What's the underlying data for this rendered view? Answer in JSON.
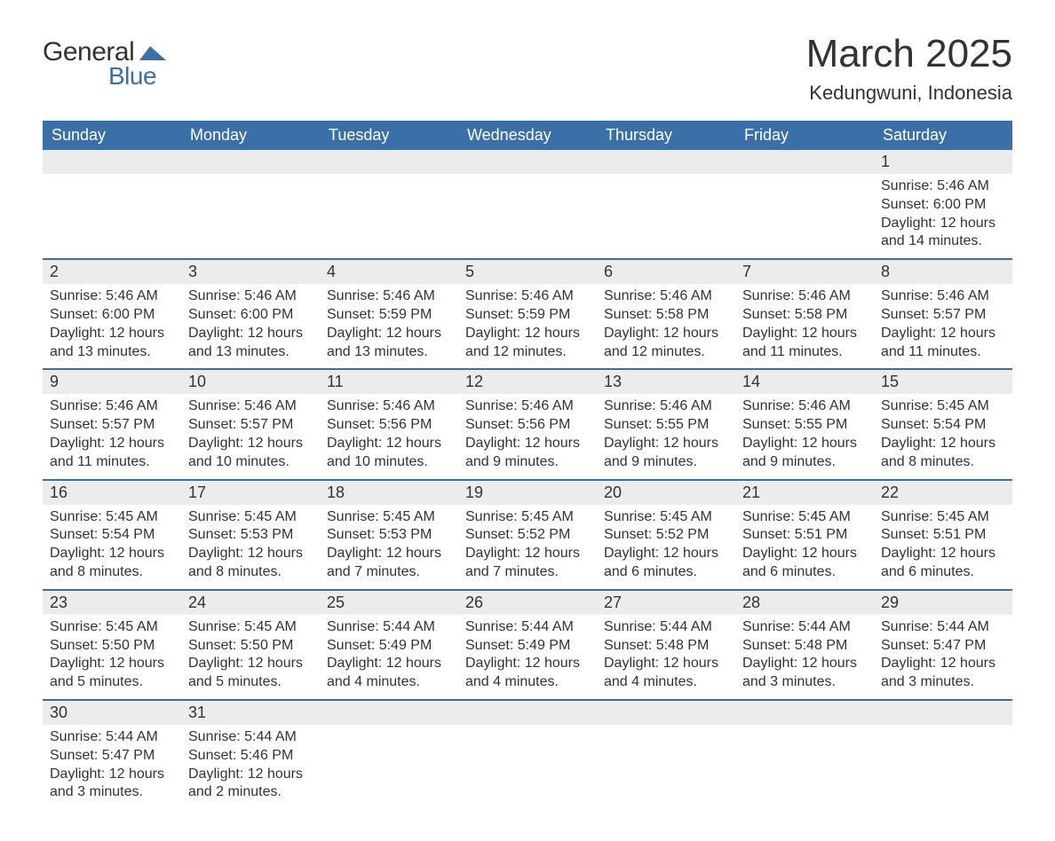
{
  "logo": {
    "text1": "General",
    "text2": "Blue",
    "mark_color": "#3b6fa8"
  },
  "title": "March 2025",
  "location": "Kedungwuni, Indonesia",
  "colors": {
    "header_bg": "#3b6fa8",
    "header_text": "#ffffff",
    "daynum_bg": "#ececec",
    "row_divider": "#3b6fa8",
    "body_text": "#333333",
    "page_bg": "#ffffff"
  },
  "typography": {
    "title_fontsize": 44,
    "location_fontsize": 22,
    "dow_fontsize": 18,
    "daynum_fontsize": 18,
    "detail_fontsize": 16
  },
  "days_of_week": [
    "Sunday",
    "Monday",
    "Tuesday",
    "Wednesday",
    "Thursday",
    "Friday",
    "Saturday"
  ],
  "weeks": [
    [
      null,
      null,
      null,
      null,
      null,
      null,
      {
        "n": "1",
        "sr": "Sunrise: 5:46 AM",
        "ss": "Sunset: 6:00 PM",
        "d1": "Daylight: 12 hours",
        "d2": "and 14 minutes."
      }
    ],
    [
      {
        "n": "2",
        "sr": "Sunrise: 5:46 AM",
        "ss": "Sunset: 6:00 PM",
        "d1": "Daylight: 12 hours",
        "d2": "and 13 minutes."
      },
      {
        "n": "3",
        "sr": "Sunrise: 5:46 AM",
        "ss": "Sunset: 6:00 PM",
        "d1": "Daylight: 12 hours",
        "d2": "and 13 minutes."
      },
      {
        "n": "4",
        "sr": "Sunrise: 5:46 AM",
        "ss": "Sunset: 5:59 PM",
        "d1": "Daylight: 12 hours",
        "d2": "and 13 minutes."
      },
      {
        "n": "5",
        "sr": "Sunrise: 5:46 AM",
        "ss": "Sunset: 5:59 PM",
        "d1": "Daylight: 12 hours",
        "d2": "and 12 minutes."
      },
      {
        "n": "6",
        "sr": "Sunrise: 5:46 AM",
        "ss": "Sunset: 5:58 PM",
        "d1": "Daylight: 12 hours",
        "d2": "and 12 minutes."
      },
      {
        "n": "7",
        "sr": "Sunrise: 5:46 AM",
        "ss": "Sunset: 5:58 PM",
        "d1": "Daylight: 12 hours",
        "d2": "and 11 minutes."
      },
      {
        "n": "8",
        "sr": "Sunrise: 5:46 AM",
        "ss": "Sunset: 5:57 PM",
        "d1": "Daylight: 12 hours",
        "d2": "and 11 minutes."
      }
    ],
    [
      {
        "n": "9",
        "sr": "Sunrise: 5:46 AM",
        "ss": "Sunset: 5:57 PM",
        "d1": "Daylight: 12 hours",
        "d2": "and 11 minutes."
      },
      {
        "n": "10",
        "sr": "Sunrise: 5:46 AM",
        "ss": "Sunset: 5:57 PM",
        "d1": "Daylight: 12 hours",
        "d2": "and 10 minutes."
      },
      {
        "n": "11",
        "sr": "Sunrise: 5:46 AM",
        "ss": "Sunset: 5:56 PM",
        "d1": "Daylight: 12 hours",
        "d2": "and 10 minutes."
      },
      {
        "n": "12",
        "sr": "Sunrise: 5:46 AM",
        "ss": "Sunset: 5:56 PM",
        "d1": "Daylight: 12 hours",
        "d2": "and 9 minutes."
      },
      {
        "n": "13",
        "sr": "Sunrise: 5:46 AM",
        "ss": "Sunset: 5:55 PM",
        "d1": "Daylight: 12 hours",
        "d2": "and 9 minutes."
      },
      {
        "n": "14",
        "sr": "Sunrise: 5:46 AM",
        "ss": "Sunset: 5:55 PM",
        "d1": "Daylight: 12 hours",
        "d2": "and 9 minutes."
      },
      {
        "n": "15",
        "sr": "Sunrise: 5:45 AM",
        "ss": "Sunset: 5:54 PM",
        "d1": "Daylight: 12 hours",
        "d2": "and 8 minutes."
      }
    ],
    [
      {
        "n": "16",
        "sr": "Sunrise: 5:45 AM",
        "ss": "Sunset: 5:54 PM",
        "d1": "Daylight: 12 hours",
        "d2": "and 8 minutes."
      },
      {
        "n": "17",
        "sr": "Sunrise: 5:45 AM",
        "ss": "Sunset: 5:53 PM",
        "d1": "Daylight: 12 hours",
        "d2": "and 8 minutes."
      },
      {
        "n": "18",
        "sr": "Sunrise: 5:45 AM",
        "ss": "Sunset: 5:53 PM",
        "d1": "Daylight: 12 hours",
        "d2": "and 7 minutes."
      },
      {
        "n": "19",
        "sr": "Sunrise: 5:45 AM",
        "ss": "Sunset: 5:52 PM",
        "d1": "Daylight: 12 hours",
        "d2": "and 7 minutes."
      },
      {
        "n": "20",
        "sr": "Sunrise: 5:45 AM",
        "ss": "Sunset: 5:52 PM",
        "d1": "Daylight: 12 hours",
        "d2": "and 6 minutes."
      },
      {
        "n": "21",
        "sr": "Sunrise: 5:45 AM",
        "ss": "Sunset: 5:51 PM",
        "d1": "Daylight: 12 hours",
        "d2": "and 6 minutes."
      },
      {
        "n": "22",
        "sr": "Sunrise: 5:45 AM",
        "ss": "Sunset: 5:51 PM",
        "d1": "Daylight: 12 hours",
        "d2": "and 6 minutes."
      }
    ],
    [
      {
        "n": "23",
        "sr": "Sunrise: 5:45 AM",
        "ss": "Sunset: 5:50 PM",
        "d1": "Daylight: 12 hours",
        "d2": "and 5 minutes."
      },
      {
        "n": "24",
        "sr": "Sunrise: 5:45 AM",
        "ss": "Sunset: 5:50 PM",
        "d1": "Daylight: 12 hours",
        "d2": "and 5 minutes."
      },
      {
        "n": "25",
        "sr": "Sunrise: 5:44 AM",
        "ss": "Sunset: 5:49 PM",
        "d1": "Daylight: 12 hours",
        "d2": "and 4 minutes."
      },
      {
        "n": "26",
        "sr": "Sunrise: 5:44 AM",
        "ss": "Sunset: 5:49 PM",
        "d1": "Daylight: 12 hours",
        "d2": "and 4 minutes."
      },
      {
        "n": "27",
        "sr": "Sunrise: 5:44 AM",
        "ss": "Sunset: 5:48 PM",
        "d1": "Daylight: 12 hours",
        "d2": "and 4 minutes."
      },
      {
        "n": "28",
        "sr": "Sunrise: 5:44 AM",
        "ss": "Sunset: 5:48 PM",
        "d1": "Daylight: 12 hours",
        "d2": "and 3 minutes."
      },
      {
        "n": "29",
        "sr": "Sunrise: 5:44 AM",
        "ss": "Sunset: 5:47 PM",
        "d1": "Daylight: 12 hours",
        "d2": "and 3 minutes."
      }
    ],
    [
      {
        "n": "30",
        "sr": "Sunrise: 5:44 AM",
        "ss": "Sunset: 5:47 PM",
        "d1": "Daylight: 12 hours",
        "d2": "and 3 minutes."
      },
      {
        "n": "31",
        "sr": "Sunrise: 5:44 AM",
        "ss": "Sunset: 5:46 PM",
        "d1": "Daylight: 12 hours",
        "d2": "and 2 minutes."
      },
      null,
      null,
      null,
      null,
      null
    ]
  ]
}
